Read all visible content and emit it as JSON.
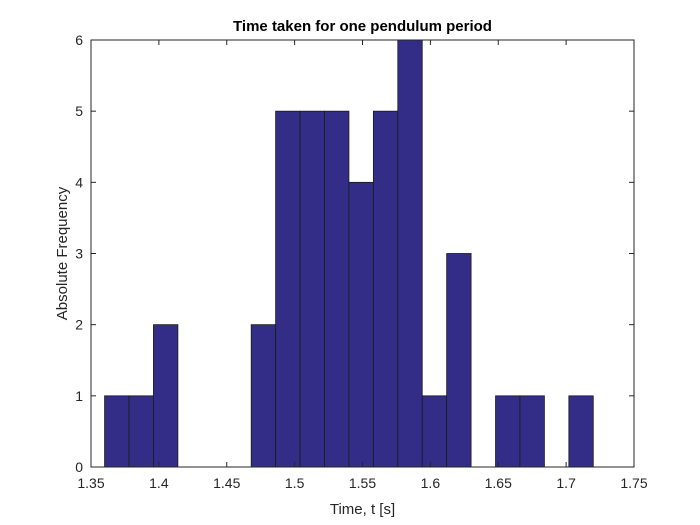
{
  "chart_data": {
    "type": "bar",
    "title": "Time taken for one pendulum period",
    "xlabel": "Time, t [s]",
    "ylabel": "Absolute Frequency",
    "xlim": [
      1.35,
      1.75
    ],
    "ylim": [
      0,
      6
    ],
    "xticks": [
      "1.35",
      "1.4",
      "1.45",
      "1.5",
      "1.55",
      "1.6",
      "1.65",
      "1.7",
      "1.75"
    ],
    "yticks": [
      "0",
      "1",
      "2",
      "3",
      "4",
      "5",
      "6"
    ],
    "bin_edges": [
      1.36,
      1.378,
      1.396,
      1.414,
      1.432,
      1.45,
      1.468,
      1.486,
      1.504,
      1.522,
      1.54,
      1.558,
      1.576,
      1.594,
      1.612,
      1.63,
      1.648,
      1.666,
      1.684,
      1.702,
      1.72
    ],
    "values": [
      1,
      1,
      2,
      0,
      0,
      0,
      2,
      5,
      5,
      5,
      4,
      5,
      6,
      1,
      3,
      0,
      1,
      1,
      0,
      1
    ],
    "bar_color": "#332d88",
    "edge_color": "#1a1a1a",
    "grid": false
  }
}
